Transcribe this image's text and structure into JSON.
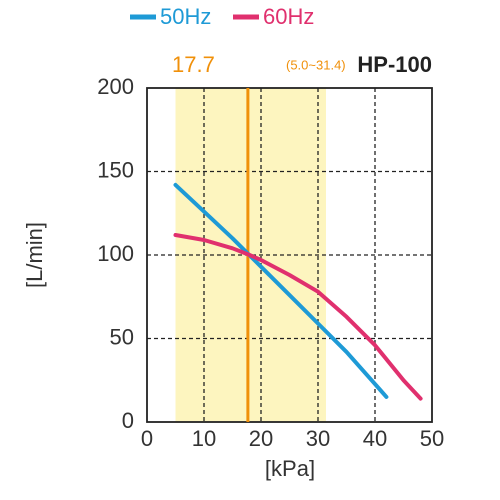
{
  "chart_data": {
    "type": "line",
    "model": "HP-100",
    "marker": {
      "value": 17.7,
      "color": "#f0900a"
    },
    "range": {
      "values": [
        5.0,
        31.4
      ],
      "label": "(5.0~31.4)",
      "color": "#fdf5bf"
    },
    "xlabel": "[kPa]",
    "ylabel": "[L/min]",
    "xlim": [
      0,
      50
    ],
    "xticks": [
      0,
      10,
      20,
      30,
      40,
      50
    ],
    "ylim": [
      0,
      200
    ],
    "yticks": [
      0,
      50,
      100,
      150,
      200
    ],
    "grid": true,
    "series": [
      {
        "name": "50Hz",
        "color": "#1e9ad6",
        "x": [
          5,
          10,
          15,
          20,
          25,
          30,
          35,
          42
        ],
        "values": [
          142,
          126,
          110,
          93,
          76,
          59,
          42,
          15
        ]
      },
      {
        "name": "60Hz",
        "color": "#e0306e",
        "x": [
          5,
          10,
          15,
          18,
          20,
          25,
          30,
          35,
          40,
          45,
          48
        ],
        "values": [
          112,
          109,
          104,
          100,
          97,
          88,
          78,
          63,
          46,
          25,
          14
        ]
      }
    ]
  }
}
